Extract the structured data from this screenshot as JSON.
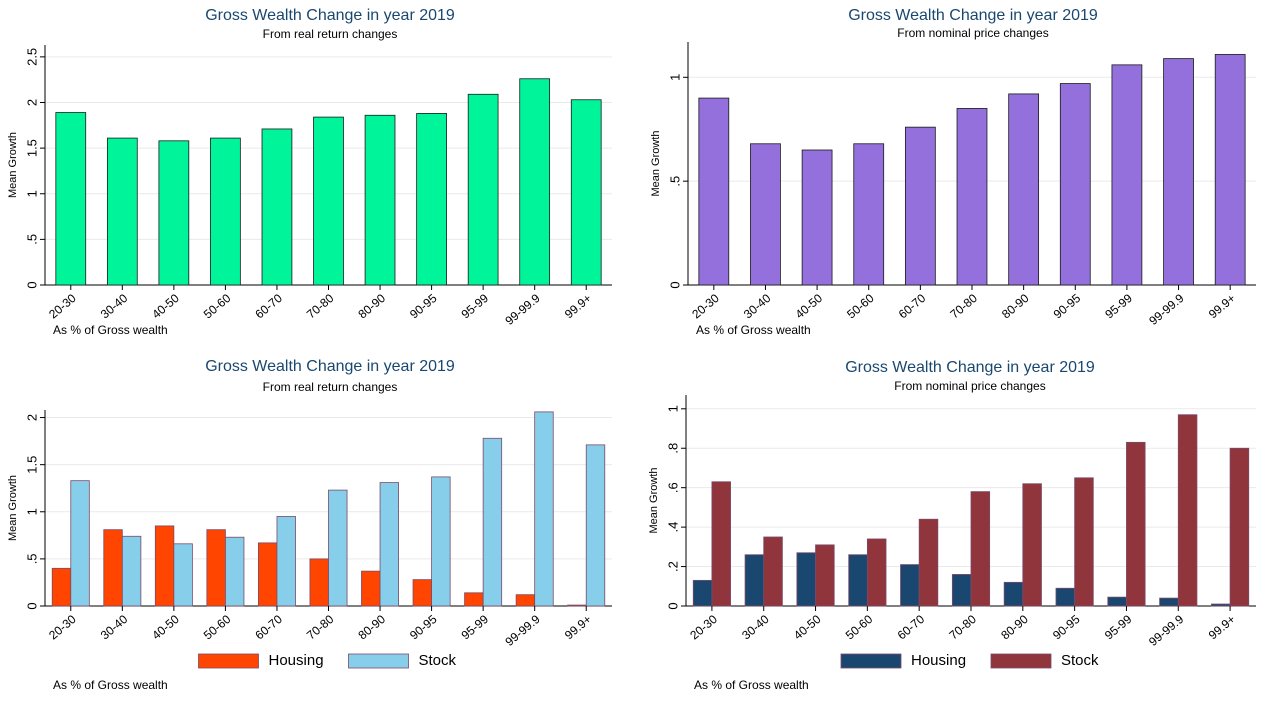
{
  "chart_data": [
    {
      "type": "bar",
      "title": "Gross Wealth Change in year 2019",
      "subtitle": "From real return changes",
      "y_label": "Mean Growth",
      "note": "As % of Gross wealth",
      "categories": [
        "20-30",
        "30-40",
        "40-50",
        "50-60",
        "60-70",
        "70-80",
        "80-90",
        "90-95",
        "95-99",
        "99-99.9",
        "99.9+"
      ],
      "series": [
        {
          "color": "#00f59b",
          "values": [
            1.89,
            1.61,
            1.58,
            1.61,
            1.71,
            1.84,
            1.86,
            1.88,
            2.09,
            2.26,
            2.03
          ]
        }
      ],
      "ylim": [
        0,
        2.63
      ],
      "yticks": [
        0,
        {
          "value": 0.5,
          "label": ".5"
        },
        1,
        1.5,
        2,
        2.5
      ],
      "grid": true
    },
    {
      "type": "bar",
      "title": "Gross Wealth Change in year 2019",
      "subtitle": "From nominal price changes",
      "y_label": "Mean Growth",
      "note": "As % of Gross wealth",
      "categories": [
        "20-30",
        "30-40",
        "40-50",
        "50-60",
        "60-70",
        "70-80",
        "80-90",
        "90-95",
        "95-99",
        "99-99.9",
        "99.9+"
      ],
      "series": [
        {
          "color": "#9370db",
          "values": [
            0.9,
            0.68,
            0.65,
            0.68,
            0.76,
            0.85,
            0.92,
            0.97,
            1.06,
            1.09,
            1.11
          ]
        }
      ],
      "ylim": [
        0,
        1.17
      ],
      "yticks": [
        0,
        {
          "value": 0.5,
          "label": ".5"
        },
        1
      ],
      "grid": true
    },
    {
      "type": "bar",
      "title": "Gross Wealth Change in year 2019",
      "subtitle": "From real return changes",
      "y_label": "Mean Growth",
      "note": "As % of Gross wealth",
      "categories": [
        "20-30",
        "30-40",
        "40-50",
        "50-60",
        "60-70",
        "70-80",
        "80-90",
        "90-95",
        "95-99",
        "99-99.9",
        "99.9+"
      ],
      "series": [
        {
          "name": "Housing",
          "color": "#ff4500",
          "values": [
            0.4,
            0.81,
            0.85,
            0.81,
            0.67,
            0.5,
            0.37,
            0.28,
            0.14,
            0.12,
            0.01
          ]
        },
        {
          "name": "Stock",
          "color": "#87ceeb",
          "values": [
            1.33,
            0.74,
            0.66,
            0.73,
            0.95,
            1.23,
            1.31,
            1.37,
            1.78,
            2.06,
            1.71
          ]
        }
      ],
      "ylim": [
        0,
        2.08
      ],
      "yticks": [
        0,
        {
          "value": 0.5,
          "label": ".5"
        },
        1,
        1.5,
        2
      ],
      "grid": true,
      "legend": "bottom"
    },
    {
      "type": "bar",
      "title": "Gross Wealth Change in year 2019",
      "subtitle": "From nominal price changes",
      "y_label": "Mean Growth",
      "note": "As % of Gross wealth",
      "categories": [
        "20-30",
        "30-40",
        "40-50",
        "50-60",
        "60-70",
        "70-80",
        "80-90",
        "90-95",
        "95-99",
        "99-99.9",
        "99.9+"
      ],
      "series": [
        {
          "name": "Housing",
          "color": "#1a476f",
          "values": [
            0.13,
            0.26,
            0.27,
            0.26,
            0.21,
            0.16,
            0.12,
            0.09,
            0.045,
            0.04,
            0.01
          ]
        },
        {
          "name": "Stock",
          "color": "#90353b",
          "values": [
            0.63,
            0.35,
            0.31,
            0.34,
            0.44,
            0.58,
            0.62,
            0.65,
            0.83,
            0.97,
            0.8
          ]
        }
      ],
      "ylim": [
        0,
        1.07
      ],
      "yticks": [
        0,
        {
          "value": 0.2,
          "label": ".2"
        },
        {
          "value": 0.4,
          "label": ".4"
        },
        {
          "value": 0.6,
          "label": ".6"
        },
        {
          "value": 0.8,
          "label": ".8"
        },
        1
      ],
      "grid": true,
      "legend": "bottom"
    }
  ]
}
